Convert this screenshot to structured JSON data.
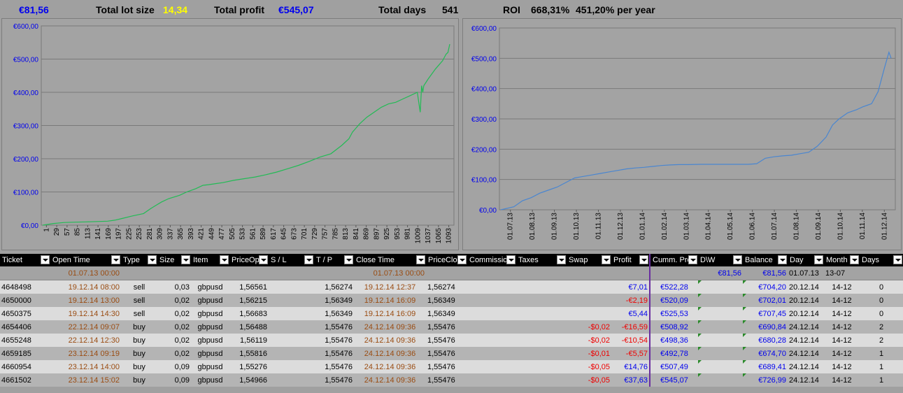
{
  "topbar": {
    "balance": "€81,56",
    "lot_label": "Total lot size",
    "lot_value": "14,34",
    "profit_label": "Total profit",
    "profit_value": "€545,07",
    "days_label": "Total days",
    "days_value": "541",
    "roi_label": "ROI",
    "roi_value": "668,31%",
    "roi_year": "451,20% per year"
  },
  "chart_data": [
    {
      "type": "line",
      "title": "",
      "xlabel": "",
      "ylabel": "",
      "ylim": [
        0,
        600
      ],
      "y_ticks": [
        "€0,00",
        "€100,00",
        "€200,00",
        "€300,00",
        "€400,00",
        "€500,00",
        "€600,00"
      ],
      "x_ticks": [
        "1",
        "29",
        "57",
        "85",
        "113",
        "141",
        "169",
        "197",
        "225",
        "253",
        "281",
        "309",
        "337",
        "365",
        "393",
        "421",
        "449",
        "477",
        "505",
        "533",
        "561",
        "589",
        "617",
        "645",
        "673",
        "701",
        "729",
        "757",
        "785",
        "813",
        "841",
        "869",
        "897",
        "925",
        "953",
        "981",
        "1009",
        "1037",
        "1065",
        "1093"
      ],
      "series_color": "#22bb55",
      "grid": true,
      "x": [
        0,
        30,
        60,
        90,
        120,
        150,
        180,
        200,
        220,
        250,
        280,
        300,
        315,
        330,
        350,
        380,
        400,
        425,
        445,
        460,
        480,
        500,
        530,
        560,
        590,
        620,
        650,
        680,
        710,
        740,
        770,
        800,
        830,
        850,
        860,
        880,
        900,
        920,
        940,
        960,
        980,
        1000,
        1020,
        1040,
        1048,
        1052,
        1055,
        1058,
        1070,
        1090,
        1110,
        1120,
        1125,
        1130
      ],
      "y": [
        0,
        5,
        8,
        9,
        10,
        11,
        12,
        15,
        20,
        28,
        35,
        50,
        60,
        70,
        80,
        90,
        100,
        110,
        120,
        122,
        125,
        128,
        135,
        140,
        145,
        152,
        160,
        170,
        180,
        192,
        205,
        215,
        240,
        260,
        280,
        305,
        325,
        340,
        355,
        365,
        370,
        380,
        390,
        400,
        340,
        420,
        400,
        420,
        440,
        470,
        495,
        515,
        520,
        545
      ]
    },
    {
      "type": "line",
      "title": "",
      "xlabel": "",
      "ylabel": "",
      "ylim": [
        0,
        600
      ],
      "y_ticks": [
        "€0,00",
        "€100,00",
        "€200,00",
        "€300,00",
        "€400,00",
        "€500,00",
        "€600,00"
      ],
      "x_ticks": [
        "01.07.13",
        "01.08.13",
        "01.09.13",
        "01.10.13",
        "01.11.13",
        "01.12.13",
        "01.01.14",
        "01.02.14",
        "01.03.14",
        "01.04.14",
        "01.05.14",
        "01.06.14",
        "01.07.14",
        "01.08.14",
        "01.09.14",
        "01.10.14",
        "01.11.14",
        "01.12.14"
      ],
      "series_color": "#4a86d0",
      "grid": true,
      "x": [
        0,
        0.6,
        1.0,
        1.4,
        1.8,
        2.0,
        2.6,
        3.0,
        3.4,
        3.8,
        4.2,
        4.6,
        5.0,
        5.4,
        5.8,
        6.2,
        6.6,
        7.0,
        7.4,
        7.8,
        8.2,
        8.6,
        9.2,
        10.0,
        10.6,
        11.0,
        11.4,
        11.8,
        12.2,
        12.6,
        13.0,
        13.4,
        13.8,
        14.2,
        14.6,
        15.0,
        15.3,
        15.6,
        16.0,
        16.4,
        16.7,
        16.9,
        17.1,
        17.4,
        17.7,
        17.9,
        18.0
      ],
      "y": [
        0,
        10,
        30,
        40,
        55,
        60,
        75,
        90,
        105,
        110,
        115,
        120,
        125,
        130,
        135,
        138,
        140,
        143,
        146,
        148,
        149,
        149,
        150,
        150,
        150,
        150,
        150,
        152,
        170,
        175,
        178,
        180,
        185,
        190,
        210,
        240,
        280,
        300,
        320,
        330,
        340,
        345,
        350,
        390,
        470,
        520,
        500
      ]
    }
  ],
  "table": {
    "headers": [
      "Ticket",
      "Open Time",
      "Type",
      "Size",
      "Item",
      "PriceOp",
      "S / L",
      "T / P",
      "Close Time",
      "PriceClo",
      "Commissio",
      "Taxes",
      "Swap",
      "Profit",
      "Cumm. Pro",
      "D\\W",
      "Balance",
      "Day",
      "Month",
      "Days"
    ],
    "first_row": {
      "open_time": "01.07.13 00:00",
      "close_time": "01.07.13 00:00",
      "dw": "€81,56",
      "balance": "€81,56",
      "day": "01.07.13",
      "month": "13-07"
    },
    "rows": [
      {
        "ticket": "4648498",
        "open": "19.12.14 08:00",
        "type": "sell",
        "size": "0,03",
        "item": "gbpusd",
        "price_op": "1,56561",
        "tp": "1,56274",
        "close": "19.12.14 12:37",
        "price_clo": "1,56274",
        "swap": "",
        "profit": "€7,01",
        "profit_neg": false,
        "cumm": "€522,28",
        "balance": "€704,20",
        "day": "20.12.14",
        "month": "14-12",
        "days": "0"
      },
      {
        "ticket": "4650000",
        "open": "19.12.14 13:00",
        "type": "sell",
        "size": "0,02",
        "item": "gbpusd",
        "price_op": "1,56215",
        "tp": "1,56349",
        "close": "19.12.14 16:09",
        "price_clo": "1,56349",
        "swap": "",
        "profit": "-€2,19",
        "profit_neg": true,
        "cumm": "€520,09",
        "balance": "€702,01",
        "day": "20.12.14",
        "month": "14-12",
        "days": "0"
      },
      {
        "ticket": "4650375",
        "open": "19.12.14 14:30",
        "type": "sell",
        "size": "0,02",
        "item": "gbpusd",
        "price_op": "1,56683",
        "tp": "1,56349",
        "close": "19.12.14 16:09",
        "price_clo": "1,56349",
        "swap": "",
        "profit": "€5,44",
        "profit_neg": false,
        "cumm": "€525,53",
        "balance": "€707,45",
        "day": "20.12.14",
        "month": "14-12",
        "days": "0"
      },
      {
        "ticket": "4654406",
        "open": "22.12.14 09:07",
        "type": "buy",
        "size": "0,02",
        "item": "gbpusd",
        "price_op": "1,56488",
        "tp": "1,55476",
        "close": "24.12.14 09:36",
        "price_clo": "1,55476",
        "swap": "-$0,02",
        "profit": "-€16,59",
        "profit_neg": true,
        "cumm": "€508,92",
        "balance": "€690,84",
        "day": "24.12.14",
        "month": "14-12",
        "days": "2"
      },
      {
        "ticket": "4655248",
        "open": "22.12.14 12:30",
        "type": "buy",
        "size": "0,02",
        "item": "gbpusd",
        "price_op": "1,56119",
        "tp": "1,55476",
        "close": "24.12.14 09:36",
        "price_clo": "1,55476",
        "swap": "-$0,02",
        "profit": "-€10,54",
        "profit_neg": true,
        "cumm": "€498,36",
        "balance": "€680,28",
        "day": "24.12.14",
        "month": "14-12",
        "days": "2"
      },
      {
        "ticket": "4659185",
        "open": "23.12.14 09:19",
        "type": "buy",
        "size": "0,02",
        "item": "gbpusd",
        "price_op": "1,55816",
        "tp": "1,55476",
        "close": "24.12.14 09:36",
        "price_clo": "1,55476",
        "swap": "-$0,01",
        "profit": "-€5,57",
        "profit_neg": true,
        "cumm": "€492,78",
        "balance": "€674,70",
        "day": "24.12.14",
        "month": "14-12",
        "days": "1"
      },
      {
        "ticket": "4660954",
        "open": "23.12.14 14:00",
        "type": "buy",
        "size": "0,09",
        "item": "gbpusd",
        "price_op": "1,55276",
        "tp": "1,55476",
        "close": "24.12.14 09:36",
        "price_clo": "1,55476",
        "swap": "-$0,05",
        "profit": "€14,76",
        "profit_neg": false,
        "cumm": "€507,49",
        "balance": "€689,41",
        "day": "24.12.14",
        "month": "14-12",
        "days": "1"
      },
      {
        "ticket": "4661502",
        "open": "23.12.14 15:02",
        "type": "buy",
        "size": "0,09",
        "item": "gbpusd",
        "price_op": "1,54966",
        "tp": "1,55476",
        "close": "24.12.14 09:36",
        "price_clo": "1,55476",
        "swap": "-$0,05",
        "profit": "€37,63",
        "profit_neg": false,
        "cumm": "€545,07",
        "balance": "€726,99",
        "day": "24.12.14",
        "month": "14-12",
        "days": "1"
      }
    ]
  }
}
